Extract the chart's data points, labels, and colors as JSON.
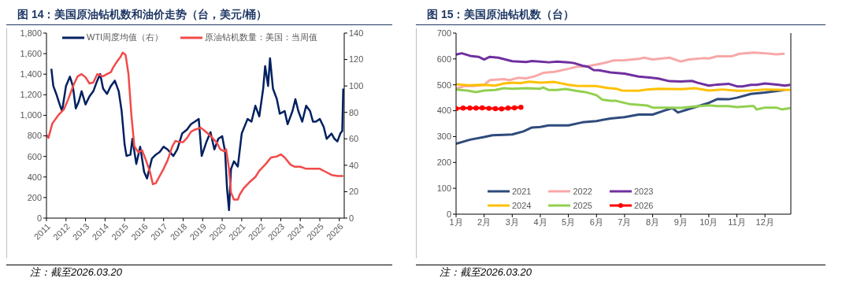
{
  "chart_data": [
    {
      "type": "line",
      "title": "图 14：美国原油钻机数和油价走势（台，美元/桶）",
      "annotations": [
        "注：截至2026.03.20"
      ],
      "xlim": [
        2011,
        2026.25
      ],
      "xticks": [
        2011,
        2012,
        2013,
        2014,
        2015,
        2016,
        2017,
        2018,
        2019,
        2020,
        2021,
        2022,
        2023,
        2024,
        2025,
        2026
      ],
      "ylim": [
        0,
        1800
      ],
      "yticks": [
        0,
        200,
        400,
        600,
        800,
        {
          "value": 1000,
          "label": "1,000"
        },
        {
          "value": 1200,
          "label": "1,200"
        },
        {
          "value": 1400,
          "label": "1,400"
        },
        {
          "value": 1600,
          "label": "1,600"
        },
        {
          "value": 1800,
          "label": "1,800"
        }
      ],
      "y2lim": [
        0,
        140
      ],
      "y2ticks": [
        0,
        20,
        40,
        60,
        80,
        100,
        120,
        140
      ],
      "grid": false,
      "legend": "top",
      "marker": "none",
      "series": [
        {
          "name": "WTI周度均值（右）",
          "color": "#002060",
          "axis": "y2",
          "x": [
            2011.25,
            2011.35,
            2011.5,
            2011.7,
            2011.8,
            2012.0,
            2012.2,
            2012.35,
            2012.5,
            2012.65,
            2012.8,
            2013.0,
            2013.2,
            2013.4,
            2013.6,
            2013.75,
            2013.9,
            2014.1,
            2014.3,
            2014.5,
            2014.7,
            2014.85,
            2015.0,
            2015.1,
            2015.3,
            2015.4,
            2015.6,
            2015.8,
            2016.0,
            2016.15,
            2016.4,
            2016.6,
            2016.8,
            2017.0,
            2017.2,
            2017.5,
            2017.7,
            2017.95,
            2018.2,
            2018.4,
            2018.6,
            2018.8,
            2018.95,
            2019.2,
            2019.4,
            2019.6,
            2019.8,
            2020.0,
            2020.15,
            2020.25,
            2020.35,
            2020.45,
            2020.6,
            2020.8,
            2021.0,
            2021.3,
            2021.5,
            2021.7,
            2021.9,
            2022.1,
            2022.2,
            2022.35,
            2022.45,
            2022.6,
            2022.8,
            2022.95,
            2023.2,
            2023.35,
            2023.6,
            2023.75,
            2023.9,
            2024.1,
            2024.3,
            2024.5,
            2024.65,
            2024.8,
            2025.0,
            2025.2,
            2025.35,
            2025.6,
            2025.75,
            2025.9,
            2026.05,
            2026.15,
            2026.2
          ],
          "values": [
            113,
            100,
            94,
            85,
            81,
            100,
            107,
            100,
            83,
            88,
            96,
            86,
            92,
            96,
            104,
            109,
            98,
            94,
            100,
            104,
            96,
            81,
            56,
            47,
            48,
            60,
            41,
            54,
            35,
            30,
            45,
            48,
            50,
            54,
            52,
            47,
            52,
            64,
            67,
            71,
            73,
            75,
            47,
            58,
            65,
            52,
            60,
            62,
            50,
            22,
            6,
            37,
            43,
            39,
            64,
            75,
            73,
            85,
            77,
            98,
            115,
            100,
            121,
            98,
            90,
            79,
            81,
            71,
            81,
            90,
            81,
            73,
            85,
            81,
            73,
            73,
            75,
            69,
            60,
            64,
            60,
            58,
            64,
            66,
            98
          ]
        },
        {
          "name": "原油钻机数量：美国：当周值",
          "color": "#f24a4a",
          "x": [
            2011.0,
            2011.1,
            2011.3,
            2011.6,
            2011.9,
            2012.1,
            2012.4,
            2012.6,
            2012.8,
            2013.0,
            2013.2,
            2013.4,
            2013.6,
            2013.9,
            2014.1,
            2014.3,
            2014.4,
            2014.6,
            2014.8,
            2014.9,
            2015.05,
            2015.2,
            2015.35,
            2015.5,
            2015.7,
            2015.9,
            2016.1,
            2016.3,
            2016.45,
            2016.6,
            2016.8,
            2017.0,
            2017.2,
            2017.45,
            2017.6,
            2017.8,
            2018.0,
            2018.2,
            2018.4,
            2018.6,
            2018.9,
            2019.1,
            2019.4,
            2019.7,
            2019.9,
            2020.1,
            2020.2,
            2020.35,
            2020.45,
            2020.6,
            2020.8,
            2020.9,
            2021.1,
            2021.4,
            2021.7,
            2021.9,
            2022.2,
            2022.5,
            2022.8,
            2023.0,
            2023.2,
            2023.5,
            2023.7,
            2024.0,
            2024.3,
            2024.6,
            2025.0,
            2025.3,
            2025.6,
            2025.9,
            2026.2
          ],
          "values": [
            810,
            780,
            920,
            1000,
            1060,
            1150,
            1300,
            1380,
            1400,
            1370,
            1310,
            1320,
            1400,
            1380,
            1400,
            1420,
            1460,
            1520,
            1570,
            1610,
            1590,
            1400,
            1000,
            700,
            640,
            660,
            560,
            450,
            330,
            340,
            410,
            480,
            560,
            700,
            750,
            740,
            740,
            780,
            840,
            860,
            880,
            850,
            800,
            740,
            670,
            650,
            670,
            480,
            250,
            180,
            180,
            230,
            290,
            350,
            400,
            460,
            520,
            590,
            600,
            620,
            590,
            520,
            500,
            500,
            480,
            480,
            480,
            450,
            420,
            410,
            410
          ]
        }
      ]
    },
    {
      "type": "line",
      "title": "图 15：美国原油钻机数（台）",
      "annotations": [
        "注：截至2026.03.20"
      ],
      "xlim": [
        1,
        12.92
      ],
      "xticks": [
        {
          "value": 1,
          "label": "1月"
        },
        {
          "value": 2,
          "label": "2月"
        },
        {
          "value": 3,
          "label": "3月"
        },
        {
          "value": 4,
          "label": "4月"
        },
        {
          "value": 5,
          "label": "5月"
        },
        {
          "value": 6,
          "label": "6月"
        },
        {
          "value": 7,
          "label": "7月"
        },
        {
          "value": 8,
          "label": "8月"
        },
        {
          "value": 9,
          "label": "9月"
        },
        {
          "value": 10,
          "label": "10月"
        },
        {
          "value": 11,
          "label": "11月"
        },
        {
          "value": 12,
          "label": "12月"
        }
      ],
      "ylim": [
        0,
        700
      ],
      "yticks": [
        0,
        100,
        200,
        300,
        400,
        500,
        600,
        700
      ],
      "grid": false,
      "legend": "bottom left",
      "marker": "none",
      "series": [
        {
          "name": "2021",
          "color": "#2f4b7c",
          "x": [
            1,
            1.5,
            2,
            2.3,
            2.7,
            3,
            3.4,
            3.7,
            4,
            4.3,
            5,
            5.5,
            6,
            6.5,
            7,
            7.5,
            8,
            8.4,
            8.7,
            8.9,
            9.4,
            10,
            10.3,
            10.7,
            11,
            11.5,
            12,
            12.7
          ],
          "values": [
            272,
            288,
            298,
            305,
            307,
            308,
            320,
            335,
            337,
            343,
            343,
            355,
            360,
            370,
            375,
            385,
            385,
            400,
            410,
            393,
            410,
            430,
            445,
            444,
            450,
            465,
            470,
            480
          ]
        },
        {
          "name": "2022",
          "color": "#f8a8a8",
          "x": [
            1,
            1.3,
            1.6,
            2,
            2.2,
            2.7,
            2.9,
            3.2,
            3.5,
            3.8,
            4.1,
            4.5,
            5,
            5.3,
            5.7,
            6,
            6.3,
            6.6,
            7,
            7.5,
            7.7,
            8,
            8.6,
            9,
            9.3,
            9.8,
            10,
            10.3,
            10.8,
            11.1,
            11.6,
            12,
            12.4,
            12.7
          ],
          "values": [
            485,
            495,
            495,
            500,
            518,
            522,
            518,
            527,
            525,
            533,
            546,
            550,
            562,
            570,
            572,
            578,
            585,
            594,
            595,
            600,
            605,
            598,
            605,
            590,
            598,
            603,
            602,
            610,
            610,
            620,
            625,
            622,
            618,
            620
          ]
        },
        {
          "name": "2023",
          "color": "#7030a0",
          "x": [
            1,
            1.2,
            1.5,
            1.8,
            2,
            2.2,
            2.5,
            3,
            3.5,
            3.7,
            4,
            4.3,
            4.6,
            5,
            5.2,
            5.5,
            5.7,
            5.9,
            6.1,
            6.5,
            7,
            7.5,
            7.9,
            8.2,
            8.6,
            9,
            9.4,
            9.6,
            10,
            10.3,
            10.7,
            11,
            11.2,
            11.5,
            11.7,
            12,
            12.5,
            12.7,
            12.9
          ],
          "values": [
            617,
            622,
            612,
            608,
            598,
            608,
            605,
            591,
            588,
            592,
            590,
            587,
            590,
            587,
            584,
            574,
            570,
            557,
            556,
            548,
            543,
            532,
            528,
            524,
            514,
            513,
            515,
            508,
            497,
            501,
            504,
            494,
            494,
            500,
            500,
            505,
            500,
            497,
            500
          ]
        },
        {
          "name": "2024",
          "color": "#ffc000",
          "x": [
            1,
            1.5,
            2,
            2.4,
            2.7,
            3,
            3.3,
            3.6,
            4,
            4.5,
            5,
            5.3,
            6,
            6.4,
            6.7,
            6.9,
            7.5,
            7.8,
            8.2,
            9,
            9.2,
            9.5,
            10,
            10.5,
            11,
            11.5,
            12,
            12.9
          ],
          "values": [
            502,
            498,
            500,
            497,
            505,
            508,
            507,
            512,
            508,
            511,
            500,
            496,
            495,
            488,
            485,
            478,
            477,
            482,
            485,
            483,
            485,
            487,
            478,
            482,
            477,
            478,
            482,
            480
          ]
        },
        {
          "name": "2025",
          "color": "#92d050",
          "x": [
            1,
            1.4,
            1.7,
            2,
            2.4,
            2.7,
            3,
            3.5,
            4,
            4.1,
            4.3,
            4.6,
            4.9,
            5.3,
            5.6,
            6,
            6.2,
            6.5,
            6.7,
            7.2,
            7.8,
            8,
            8.5,
            9,
            9.5,
            10,
            10.3,
            10.7,
            11,
            11.5,
            11.6,
            11.7,
            12,
            12.4,
            12.6,
            12.9
          ],
          "values": [
            482,
            478,
            472,
            478,
            480,
            487,
            485,
            487,
            485,
            490,
            480,
            480,
            484,
            476,
            472,
            460,
            443,
            438,
            438,
            425,
            420,
            412,
            412,
            411,
            416,
            421,
            418,
            418,
            414,
            418,
            418,
            405,
            412,
            412,
            405,
            410
          ]
        },
        {
          "name": "2026",
          "color": "#ff0000",
          "marker": "circle",
          "x": [
            1,
            1.25,
            1.49,
            1.71,
            1.93,
            2.17,
            2.4,
            2.62,
            2.85,
            3.08,
            3.31
          ],
          "values": [
            408,
            410,
            410,
            410,
            411,
            409,
            408,
            407,
            410,
            411,
            413
          ]
        }
      ]
    }
  ]
}
